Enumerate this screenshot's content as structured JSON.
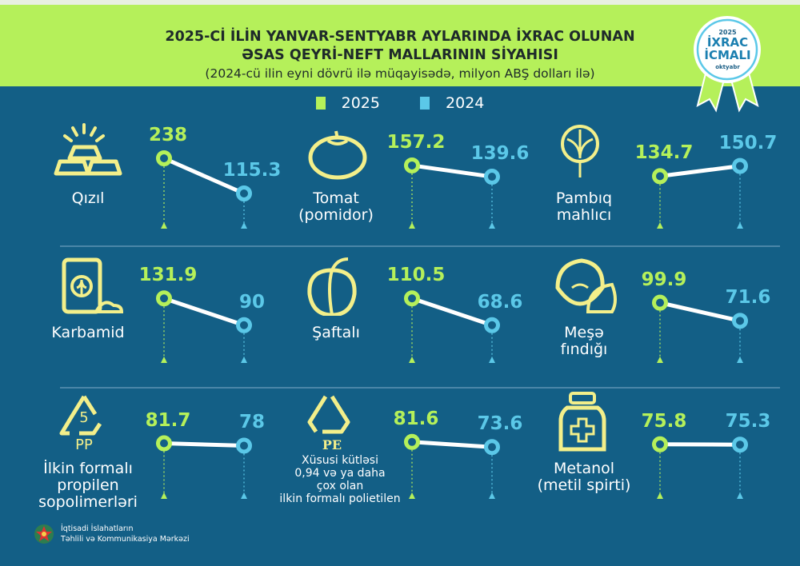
{
  "header": {
    "title_line1": "2025-Cİ İLİN YANVAR-SENTYABR AYLARINDA İXRAC OLUNAN",
    "title_line2": "ƏSAS QEYRİ-NEFT MALLARININ SİYAHISI",
    "subtitle": "(2024-cü ilin eyni dövrü ilə müqayisədə, milyon ABŞ dolları ilə)"
  },
  "badge": {
    "year": "2025",
    "line1": "İXRAC",
    "line2": "İCMALI",
    "month": "oktyabr"
  },
  "legend": [
    {
      "label": "2025",
      "color": "#b5f05a"
    },
    {
      "label": "2024",
      "color": "#5bc8e8"
    }
  ],
  "colors": {
    "bg": "#135f86",
    "green": "#b5f05a",
    "blue": "#5bc8e8",
    "icon": "#f3ef8a"
  },
  "footer": {
    "line1": "İqtisadi İslahatların",
    "line2": "Təhlili və Kommunikasiya Mərkəzi"
  },
  "chart_data": {
    "type": "slope",
    "series_names": [
      "2025",
      "2024"
    ],
    "items": [
      {
        "label": "Qızıl",
        "icon": "gold-bars-icon",
        "v2025": 238,
        "v2024": 115.3,
        "t2025": "238",
        "t2024": "115.3"
      },
      {
        "label": "Tomat\n(pomidor)",
        "icon": "tomato-icon",
        "v2025": 157.2,
        "v2024": 139.6,
        "t2025": "157.2",
        "t2024": "139.6"
      },
      {
        "label": "Pambıq\nmahlıcı",
        "icon": "cotton-icon",
        "v2025": 134.7,
        "v2024": 150.7,
        "t2025": "134.7",
        "t2024": "150.7"
      },
      {
        "label": "Karbamid",
        "icon": "fertilizer-bag-icon",
        "v2025": 131.9,
        "v2024": 90,
        "t2025": "131.9",
        "t2024": "90"
      },
      {
        "label": "Şaftalı",
        "icon": "peach-icon",
        "v2025": 110.5,
        "v2024": 68.6,
        "t2025": "110.5",
        "t2024": "68.6"
      },
      {
        "label": "Meşə\nfındığı",
        "icon": "hazelnut-icon",
        "v2025": 99.9,
        "v2024": 71.6,
        "t2025": "99.9",
        "t2024": "71.6"
      },
      {
        "label": "İlkin formalı\npropilen\nsopolimerləri",
        "icon": "recycle-pp-icon",
        "icon_text": "PP",
        "icon_num": "5",
        "v2025": 81.7,
        "v2024": 78,
        "t2025": "81.7",
        "t2024": "78"
      },
      {
        "label": "Xüsusi kütləsi\n0,94 və ya daha\nçox olan\nilkin formalı polietilen",
        "icon": "recycle-pe-icon",
        "icon_text": "PE",
        "v2025": 81.6,
        "v2024": 73.6,
        "t2025": "81.6",
        "t2024": "73.6"
      },
      {
        "label": "Metanol\n(metil spirti)",
        "icon": "medicine-bottle-icon",
        "v2025": 75.8,
        "v2024": 75.3,
        "t2025": "75.8",
        "t2024": "75.3"
      }
    ]
  }
}
